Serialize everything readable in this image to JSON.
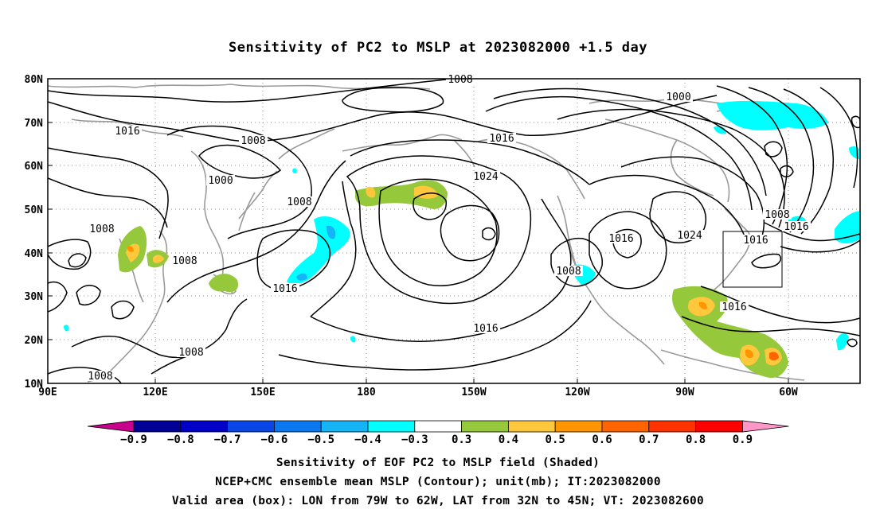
{
  "title": "Sensitivity of PC2 to MSLP at 2023082000 +1.5 day",
  "map": {
    "lat_labels": [
      "80N",
      "70N",
      "60N",
      "50N",
      "40N",
      "30N",
      "20N",
      "10N"
    ],
    "lon_labels": [
      "90E",
      "120E",
      "150E",
      "180",
      "150W",
      "120W",
      "90W",
      "60W"
    ],
    "contour_labels": [
      {
        "text": "1008"
      },
      {
        "text": "1000"
      },
      {
        "text": "1016"
      },
      {
        "text": "1008"
      },
      {
        "text": "1000"
      },
      {
        "text": "1008"
      },
      {
        "text": "1016"
      },
      {
        "text": "1024"
      },
      {
        "text": "1008"
      },
      {
        "text": "1008"
      },
      {
        "text": "1016"
      },
      {
        "text": "1016"
      },
      {
        "text": "1024"
      },
      {
        "text": "1016"
      },
      {
        "text": "1008"
      },
      {
        "text": "1016"
      },
      {
        "text": "1008"
      },
      {
        "text": "1016"
      },
      {
        "text": "1008"
      },
      {
        "text": "1008"
      },
      {
        "text": "1016"
      }
    ],
    "valid_box": {
      "lon_range": [
        "79W",
        "62W"
      ],
      "lat_range": [
        "32N",
        "45N"
      ]
    }
  },
  "colorbar": {
    "labels": [
      "-0.9",
      "-0.8",
      "-0.7",
      "-0.6",
      "-0.5",
      "-0.4",
      "-0.3",
      "0.3",
      "0.4",
      "0.5",
      "0.6",
      "0.7",
      "0.8",
      "0.9"
    ],
    "colors": [
      "#c8008c",
      "#000096",
      "#0000c8",
      "#0a46e6",
      "#0a78f0",
      "#14b4f5",
      "#00ffff",
      "#ffffff",
      "#96c83c",
      "#ffc83c",
      "#ff9600",
      "#ff6400",
      "#ff3200",
      "#ff0000",
      "#ff96c8"
    ]
  },
  "captions": {
    "line1": "Sensitivity of EOF PC2 to MSLP field (Shaded)",
    "line2": "NCEP+CMC ensemble mean MSLP (Contour); unit(mb); IT:2023082000",
    "line3": "Valid area (box): LON from 79W to 62W, LAT from 32N to 45N; VT: 2023082600"
  }
}
